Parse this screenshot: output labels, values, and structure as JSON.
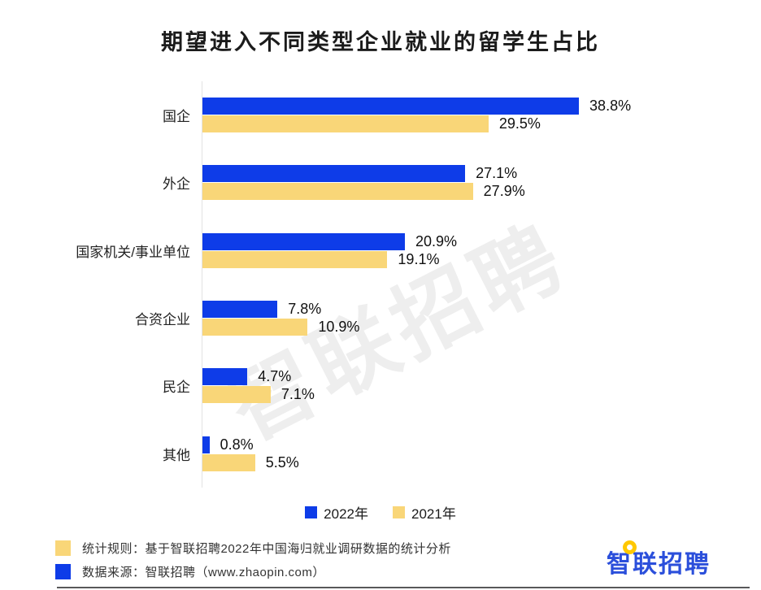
{
  "title": "期望进入不同类型企业就业的留学生占比",
  "watermark_text": "智联招聘",
  "chart_data": {
    "type": "bar",
    "orientation": "horizontal",
    "title": "期望进入不同类型企业就业的留学生占比",
    "categories": [
      "国企",
      "外企",
      "国家机关/事业单位",
      "合资企业",
      "民企",
      "其他"
    ],
    "series": [
      {
        "name": "2022年",
        "color": "#0E3CE8",
        "values": [
          38.8,
          27.1,
          20.9,
          7.8,
          4.7,
          0.8
        ]
      },
      {
        "name": "2021年",
        "color": "#F9D678",
        "values": [
          29.5,
          27.9,
          19.1,
          10.9,
          7.1,
          5.5
        ]
      }
    ],
    "value_suffix": "%",
    "value_labels": true,
    "xlim": [
      0,
      40
    ],
    "grid": false,
    "legend_position": "bottom"
  },
  "footer": {
    "notes": [
      {
        "marker_color": "#F9D678",
        "text": "统计规则：基于智联招聘2022年中国海归就业调研数据的统计分析"
      },
      {
        "marker_color": "#0E3CE8",
        "text": "数据来源：智联招聘（www.zhaopin.com）"
      }
    ],
    "logo_text": "智联招聘"
  },
  "brand": {
    "logo_blue": "#2B4FDB",
    "bubble_yellow": "#FFC800"
  }
}
